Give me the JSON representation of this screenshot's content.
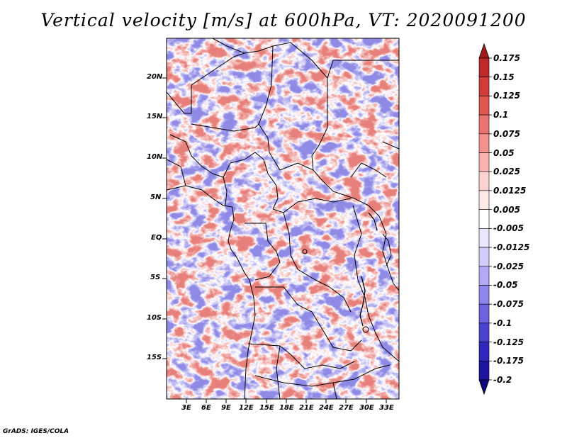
{
  "title": "Vertical velocity [m/s] at 600hPa, VT: 2020091200",
  "credit": "GrADS: IGES/COLA",
  "map": {
    "lat_labels": [
      "20N",
      "15N",
      "10N",
      "5N",
      "EQ",
      "5S",
      "10S",
      "15S"
    ],
    "lon_labels": [
      "3E",
      "6E",
      "9E",
      "12E",
      "15E",
      "18E",
      "21E",
      "24E",
      "27E",
      "30E",
      "33E"
    ]
  },
  "colorbar": {
    "labels": [
      "0.175",
      "0.15",
      "0.125",
      "0.1",
      "0.075",
      "0.05",
      "0.025",
      "0.0125",
      "0.005",
      "-0.005",
      "-0.0125",
      "-0.025",
      "-0.05",
      "-0.075",
      "-0.1",
      "-0.125",
      "-0.175",
      "-0.2"
    ],
    "colors": [
      "#a11b1f",
      "#bc2a2c",
      "#d03c3a",
      "#e05650",
      "#ea7570",
      "#f3938d",
      "#f8b3ae",
      "#fcd3cf",
      "#feebe8",
      "#ffffff",
      "#e9e7fd",
      "#d0ccfb",
      "#b1aaf5",
      "#8f86ec",
      "#6c63df",
      "#4b42cf",
      "#2f26bd",
      "#1c149e",
      "#0e0a7c"
    ]
  },
  "colors": {
    "positive": "#d03c3a",
    "negative": "#6c63df",
    "land_border": "#000000"
  }
}
